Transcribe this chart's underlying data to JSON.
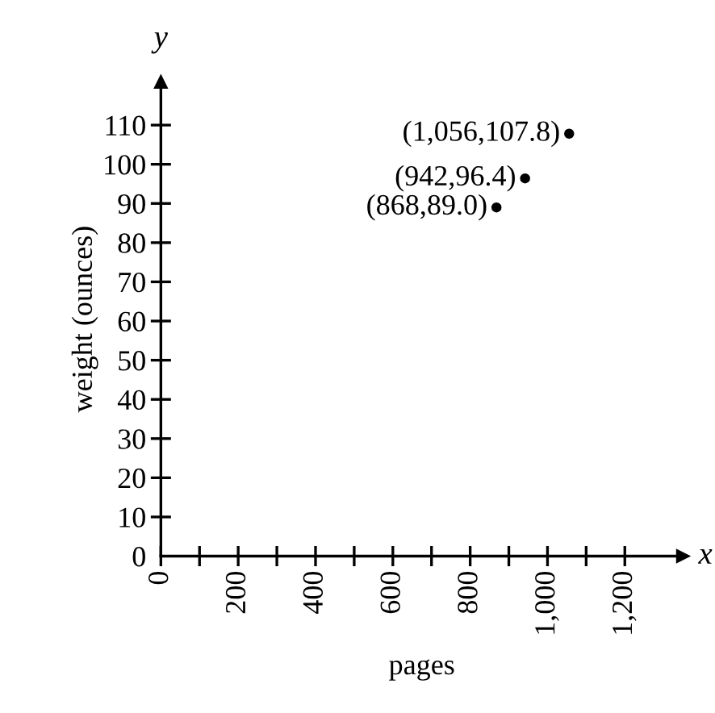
{
  "chart_data": {
    "type": "scatter",
    "xlabel": "pages",
    "ylabel": "weight (ounces)",
    "x": [
      868,
      942,
      1056
    ],
    "series": [
      {
        "color": "#000000",
        "values": [
          89.0,
          96.4,
          107.8
        ]
      }
    ],
    "marker": "circle",
    "grid": false,
    "legend": false,
    "xlim": [
      0,
      1350
    ],
    "ylim": [
      0,
      121
    ],
    "xticks": [
      0,
      {
        "value": 100,
        "label": null
      },
      200,
      {
        "value": 300,
        "label": null
      },
      400,
      {
        "value": 500,
        "label": null
      },
      600,
      {
        "value": 700,
        "label": null
      },
      800,
      {
        "value": 900,
        "label": null
      },
      {
        "value": 1000,
        "label": "1,000"
      },
      {
        "value": 1100,
        "label": null
      },
      {
        "value": 1200,
        "label": "1,200"
      }
    ],
    "yticks": [
      0,
      10,
      20,
      30,
      40,
      50,
      60,
      70,
      80,
      90,
      100,
      110
    ],
    "annotations": [
      "x",
      "y",
      {
        "text": "(868,89.0)",
        "x": 868,
        "y": 89.0
      },
      {
        "text": "(942,96.4)",
        "x": 942,
        "y": 96.4
      },
      {
        "text": "(1,056,107.8)",
        "x": 1056,
        "y": 107.8
      }
    ]
  }
}
